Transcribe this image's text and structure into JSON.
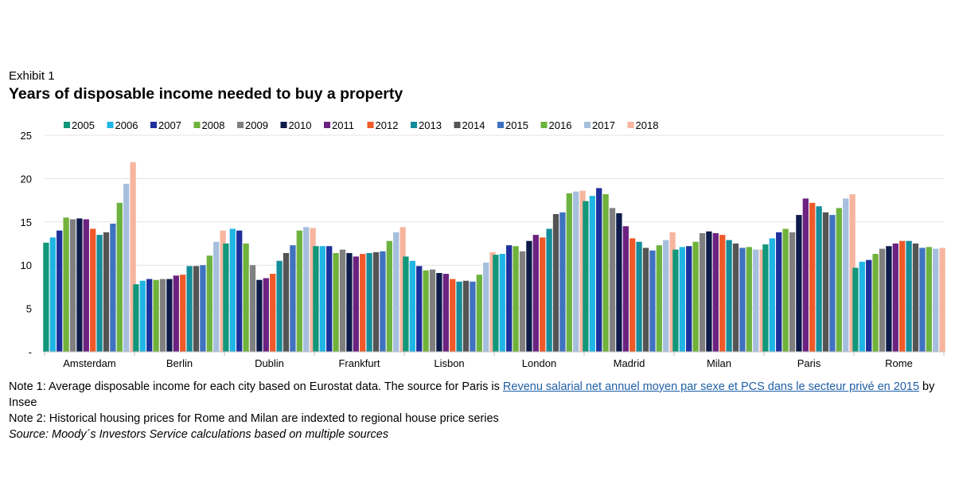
{
  "header": {
    "exhibit": "Exhibit 1",
    "title": "Years of disposable income needed to buy a property"
  },
  "chart_data": {
    "type": "bar",
    "categories": [
      "Amsterdam",
      "Berlin",
      "Dublin",
      "Frankfurt",
      "Lisbon",
      "London",
      "Madrid",
      "Milan",
      "Paris",
      "Rome"
    ],
    "ylim": [
      0,
      25
    ],
    "yticks": [
      "-",
      "5",
      "10",
      "15",
      "20",
      "25"
    ],
    "grid": true,
    "legend_position": "top",
    "series": [
      {
        "name": "2005",
        "color": "#12977a",
        "values": [
          12.6,
          7.8,
          12.5,
          12.2,
          11.0,
          11.2,
          17.4,
          11.8,
          12.4,
          9.7
        ]
      },
      {
        "name": "2006",
        "color": "#1fb5e4",
        "values": [
          13.2,
          8.2,
          14.2,
          12.2,
          10.5,
          11.3,
          18.0,
          12.1,
          13.1,
          10.4
        ]
      },
      {
        "name": "2007",
        "color": "#1f2f9c",
        "values": [
          14.0,
          8.4,
          14.0,
          12.2,
          9.9,
          12.3,
          18.9,
          12.2,
          13.8,
          10.6
        ]
      },
      {
        "name": "2008",
        "color": "#70b23a",
        "values": [
          15.5,
          8.3,
          12.5,
          11.4,
          9.4,
          12.2,
          18.2,
          12.7,
          14.2,
          11.3
        ]
      },
      {
        "name": "2009",
        "color": "#7f7f7f",
        "values": [
          15.3,
          8.4,
          10.0,
          11.8,
          9.5,
          11.6,
          16.6,
          13.7,
          13.8,
          11.9
        ]
      },
      {
        "name": "2010",
        "color": "#0d1b4a",
        "values": [
          15.4,
          8.4,
          8.3,
          11.4,
          9.1,
          12.8,
          16.0,
          13.9,
          15.8,
          12.2
        ]
      },
      {
        "name": "2011",
        "color": "#6b2280",
        "values": [
          15.3,
          8.8,
          8.5,
          11.0,
          9.0,
          13.5,
          14.5,
          13.7,
          17.7,
          12.5
        ]
      },
      {
        "name": "2012",
        "color": "#f05a28",
        "values": [
          14.2,
          8.9,
          9.0,
          11.3,
          8.4,
          13.2,
          13.1,
          13.5,
          17.2,
          12.8
        ]
      },
      {
        "name": "2013",
        "color": "#158d9a",
        "values": [
          13.5,
          9.9,
          10.5,
          11.4,
          8.1,
          14.2,
          12.7,
          12.9,
          16.8,
          12.8
        ]
      },
      {
        "name": "2014",
        "color": "#545454",
        "values": [
          13.8,
          9.9,
          11.4,
          11.5,
          8.2,
          15.9,
          12.0,
          12.5,
          16.1,
          12.5
        ]
      },
      {
        "name": "2015",
        "color": "#3f72c1",
        "values": [
          14.8,
          10.0,
          12.3,
          11.6,
          8.1,
          16.1,
          11.7,
          12.0,
          15.8,
          12.0
        ]
      },
      {
        "name": "2016",
        "color": "#6db33f",
        "values": [
          17.2,
          11.1,
          14.0,
          12.8,
          8.9,
          18.3,
          12.3,
          12.1,
          16.6,
          12.1
        ]
      },
      {
        "name": "2017",
        "color": "#a6bfdd",
        "values": [
          19.4,
          12.7,
          14.4,
          13.8,
          10.3,
          18.5,
          12.9,
          11.8,
          17.7,
          11.9
        ]
      },
      {
        "name": "2018",
        "color": "#f7b59f",
        "values": [
          21.9,
          14.0,
          14.3,
          14.4,
          11.5,
          18.6,
          13.8,
          11.8,
          18.2,
          12.0
        ]
      }
    ]
  },
  "notes": {
    "note1_prefix": "Note 1: Average disposable income for each city based on Eurostat data. The source for Paris is ",
    "note1_link": "Revenu salarial net annuel moyen par sexe et PCS dans le secteur privé en 2015",
    "note1_suffix": " by Insee",
    "note2": "Note 2: Historical housing prices for Rome and Milan are indexted to regional house price series",
    "source": "Source: Moody´s Investors Service calculations based on multiple sources"
  }
}
